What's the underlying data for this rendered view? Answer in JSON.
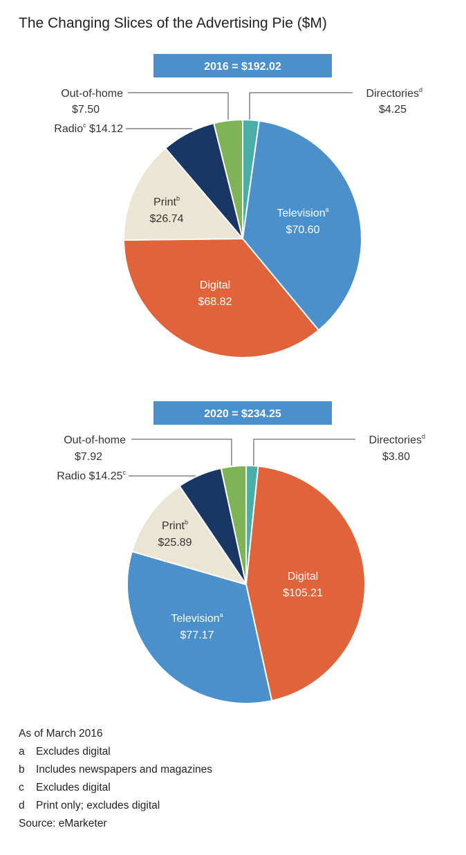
{
  "title": "The Changing Slices of the Advertising Pie ($M)",
  "chart_data": [
    {
      "type": "pie",
      "title": "2016 = $192.02",
      "slices": [
        {
          "label": "Directories",
          "sup": "d",
          "value": 4.25,
          "value_text": "$4.25",
          "color": "#4aada8"
        },
        {
          "label": "Television",
          "sup": "a",
          "value": 70.6,
          "value_text": "$70.60",
          "color": "#4a90cc"
        },
        {
          "label": "Digital",
          "sup": "",
          "value": 68.82,
          "value_text": "$68.82",
          "color": "#e0633a"
        },
        {
          "label": "Print",
          "sup": "b",
          "value": 26.74,
          "value_text": "$26.74",
          "color": "#ebe5d3"
        },
        {
          "label": "Radio",
          "sup": "c",
          "value": 14.12,
          "value_text": "$14.12",
          "color": "#183764"
        },
        {
          "label": "Out-of-home",
          "sup": "",
          "value": 7.5,
          "value_text": "$7.50",
          "color": "#7eb356"
        }
      ]
    },
    {
      "type": "pie",
      "title": "2020 = $234.25",
      "slices": [
        {
          "label": "Directories",
          "sup": "d",
          "value": 3.8,
          "value_text": "$3.80",
          "color": "#4aada8"
        },
        {
          "label": "Digital",
          "sup": "",
          "value": 105.21,
          "value_text": "$105.21",
          "color": "#e0633a"
        },
        {
          "label": "Television",
          "sup": "a",
          "value": 77.17,
          "value_text": "$77.17",
          "color": "#4a90cc"
        },
        {
          "label": "Print",
          "sup": "b",
          "value": 25.89,
          "value_text": "$25.89",
          "color": "#ebe5d3"
        },
        {
          "label": "Radio",
          "sup": "c",
          "value": 14.25,
          "value_text": "$14.25",
          "color": "#183764"
        },
        {
          "label": "Out-of-home",
          "sup": "",
          "value": 7.92,
          "value_text": "$7.92",
          "color": "#7eb356"
        }
      ]
    }
  ],
  "notes": {
    "as_of": "As of March 2016",
    "items": [
      {
        "letter": "a",
        "text": "Excludes digital"
      },
      {
        "letter": "b",
        "text": "Includes newspapers and magazines"
      },
      {
        "letter": "c",
        "text": "Excludes digital"
      },
      {
        "letter": "d",
        "text": "Print only; excludes digital"
      }
    ],
    "source": "Source: eMarketer"
  }
}
